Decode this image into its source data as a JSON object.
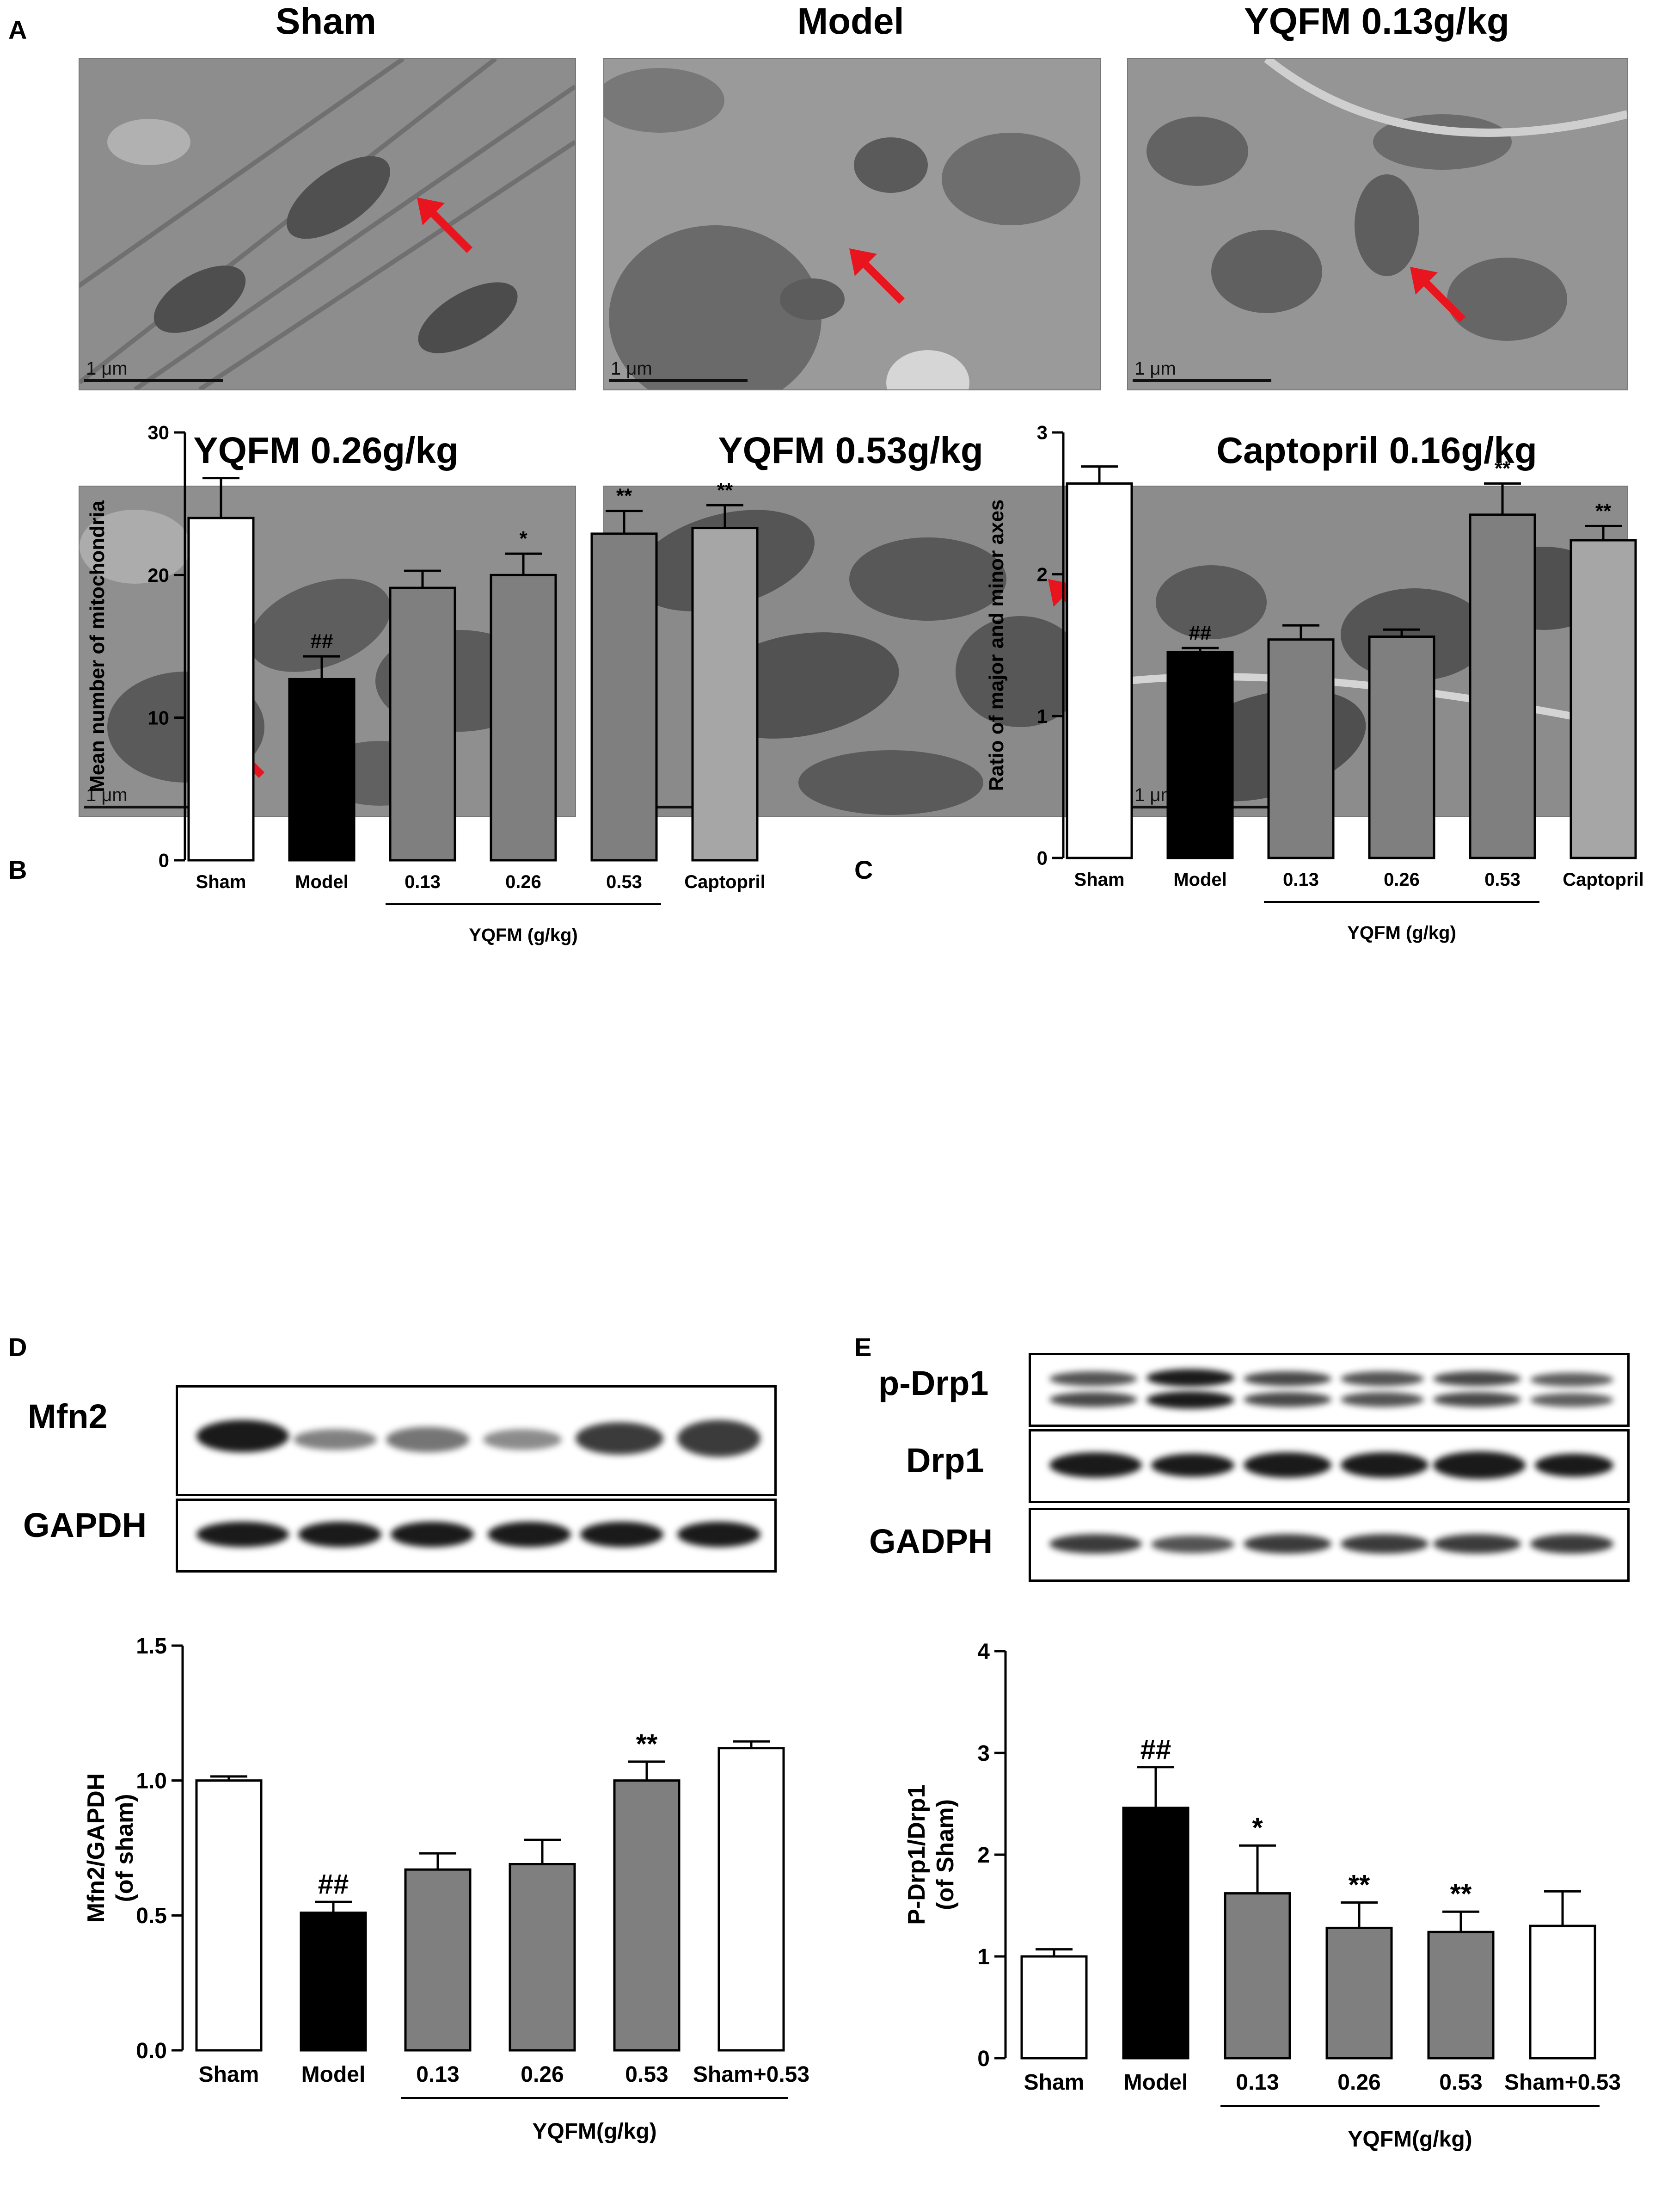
{
  "panels": {
    "a": "A",
    "b": "B",
    "c": "C",
    "d": "D",
    "e": "E"
  },
  "em": {
    "scale_label": "1 μm",
    "images": [
      {
        "title": "Sham"
      },
      {
        "title": "Model"
      },
      {
        "title": "YQFM 0.13g/kg"
      },
      {
        "title": "YQFM 0.26g/kg"
      },
      {
        "title": "YQFM 0.53g/kg"
      },
      {
        "title": "Captopril 0.16g/kg"
      }
    ],
    "arrow_color": "#e8141e"
  },
  "blots": {
    "d": {
      "rows": [
        "Mfn2",
        "GAPDH"
      ]
    },
    "e": {
      "rows": [
        "p-Drp1",
        "Drp1",
        "GADPH"
      ]
    }
  },
  "colors": {
    "white_bar": "#ffffff",
    "black_bar": "#000000",
    "grey_bar": "#7f7f7f",
    "light_grey_bar": "#a6a6a6"
  },
  "chart_data": [
    {
      "id": "B",
      "type": "bar",
      "ylabel": "Mean number of mitochondria",
      "ylim": [
        0,
        30
      ],
      "yticks": [
        "0",
        "10",
        "20",
        "30"
      ],
      "categories": [
        "Sham",
        "Model",
        "0.13",
        "0.26",
        "0.53",
        "Captopril"
      ],
      "values": [
        24,
        12.7,
        19.1,
        20,
        22.9,
        23.3
      ],
      "errors": [
        2.8,
        1.6,
        1.2,
        1.5,
        1.6,
        1.6
      ],
      "fills": [
        "white",
        "black",
        "grey",
        "grey",
        "grey",
        "lightgrey"
      ],
      "annotations": [
        "",
        "##",
        "",
        "*",
        "**",
        "**"
      ],
      "group_label": "YQFM (g/kg)",
      "group_span": [
        2,
        4
      ]
    },
    {
      "id": "C",
      "type": "bar",
      "ylabel": "Ratio of major and minor axes",
      "ylim": [
        0,
        3
      ],
      "yticks": [
        "0",
        "1",
        "2",
        "3"
      ],
      "categories": [
        "Sham",
        "Model",
        "0.13",
        "0.26",
        "0.53",
        "Captopril"
      ],
      "values": [
        2.64,
        1.45,
        1.54,
        1.56,
        2.42,
        2.24
      ],
      "errors": [
        0.12,
        0.03,
        0.1,
        0.05,
        0.22,
        0.1
      ],
      "fills": [
        "white",
        "black",
        "grey",
        "grey",
        "grey",
        "lightgrey"
      ],
      "annotations": [
        "",
        "##",
        "",
        "",
        "**",
        "**"
      ],
      "group_label": "YQFM (g/kg)",
      "group_span": [
        2,
        4
      ]
    },
    {
      "id": "D",
      "type": "bar",
      "ylabel": "Mfn2/GAPDH",
      "ylabel2": "(of sham)",
      "ylim": [
        0,
        1.5
      ],
      "yticks": [
        "0.0",
        "0.5",
        "1.0",
        "1.5"
      ],
      "categories": [
        "Sham",
        "Model",
        "0.13",
        "0.26",
        "0.53",
        "Sham+0.53"
      ],
      "values": [
        1.0,
        0.51,
        0.67,
        0.69,
        1.0,
        1.12
      ],
      "errors": [
        0.015,
        0.04,
        0.06,
        0.09,
        0.07,
        0.025
      ],
      "fills": [
        "white",
        "black",
        "grey",
        "grey",
        "grey",
        "white"
      ],
      "annotations": [
        "",
        "##",
        "",
        "",
        "**",
        ""
      ],
      "group_label": "YQFM(g/kg)",
      "group_span": [
        2,
        5
      ]
    },
    {
      "id": "E",
      "type": "bar",
      "ylabel": "P-Drp1/Drp1",
      "ylabel2": "(of Sham)",
      "ylim": [
        0,
        4
      ],
      "yticks": [
        "0",
        "1",
        "2",
        "3",
        "4"
      ],
      "categories": [
        "Sham",
        "Model",
        "0.13",
        "0.26",
        "0.53",
        "Sham+0.53"
      ],
      "values": [
        1.0,
        2.46,
        1.62,
        1.28,
        1.24,
        1.3
      ],
      "errors": [
        0.07,
        0.4,
        0.47,
        0.25,
        0.2,
        0.34
      ],
      "fills": [
        "white",
        "black",
        "grey",
        "grey",
        "grey",
        "white"
      ],
      "annotations": [
        "",
        "##",
        "*",
        "**",
        "**",
        ""
      ],
      "group_label": "YQFM(g/kg)",
      "group_span": [
        2,
        5
      ]
    }
  ]
}
